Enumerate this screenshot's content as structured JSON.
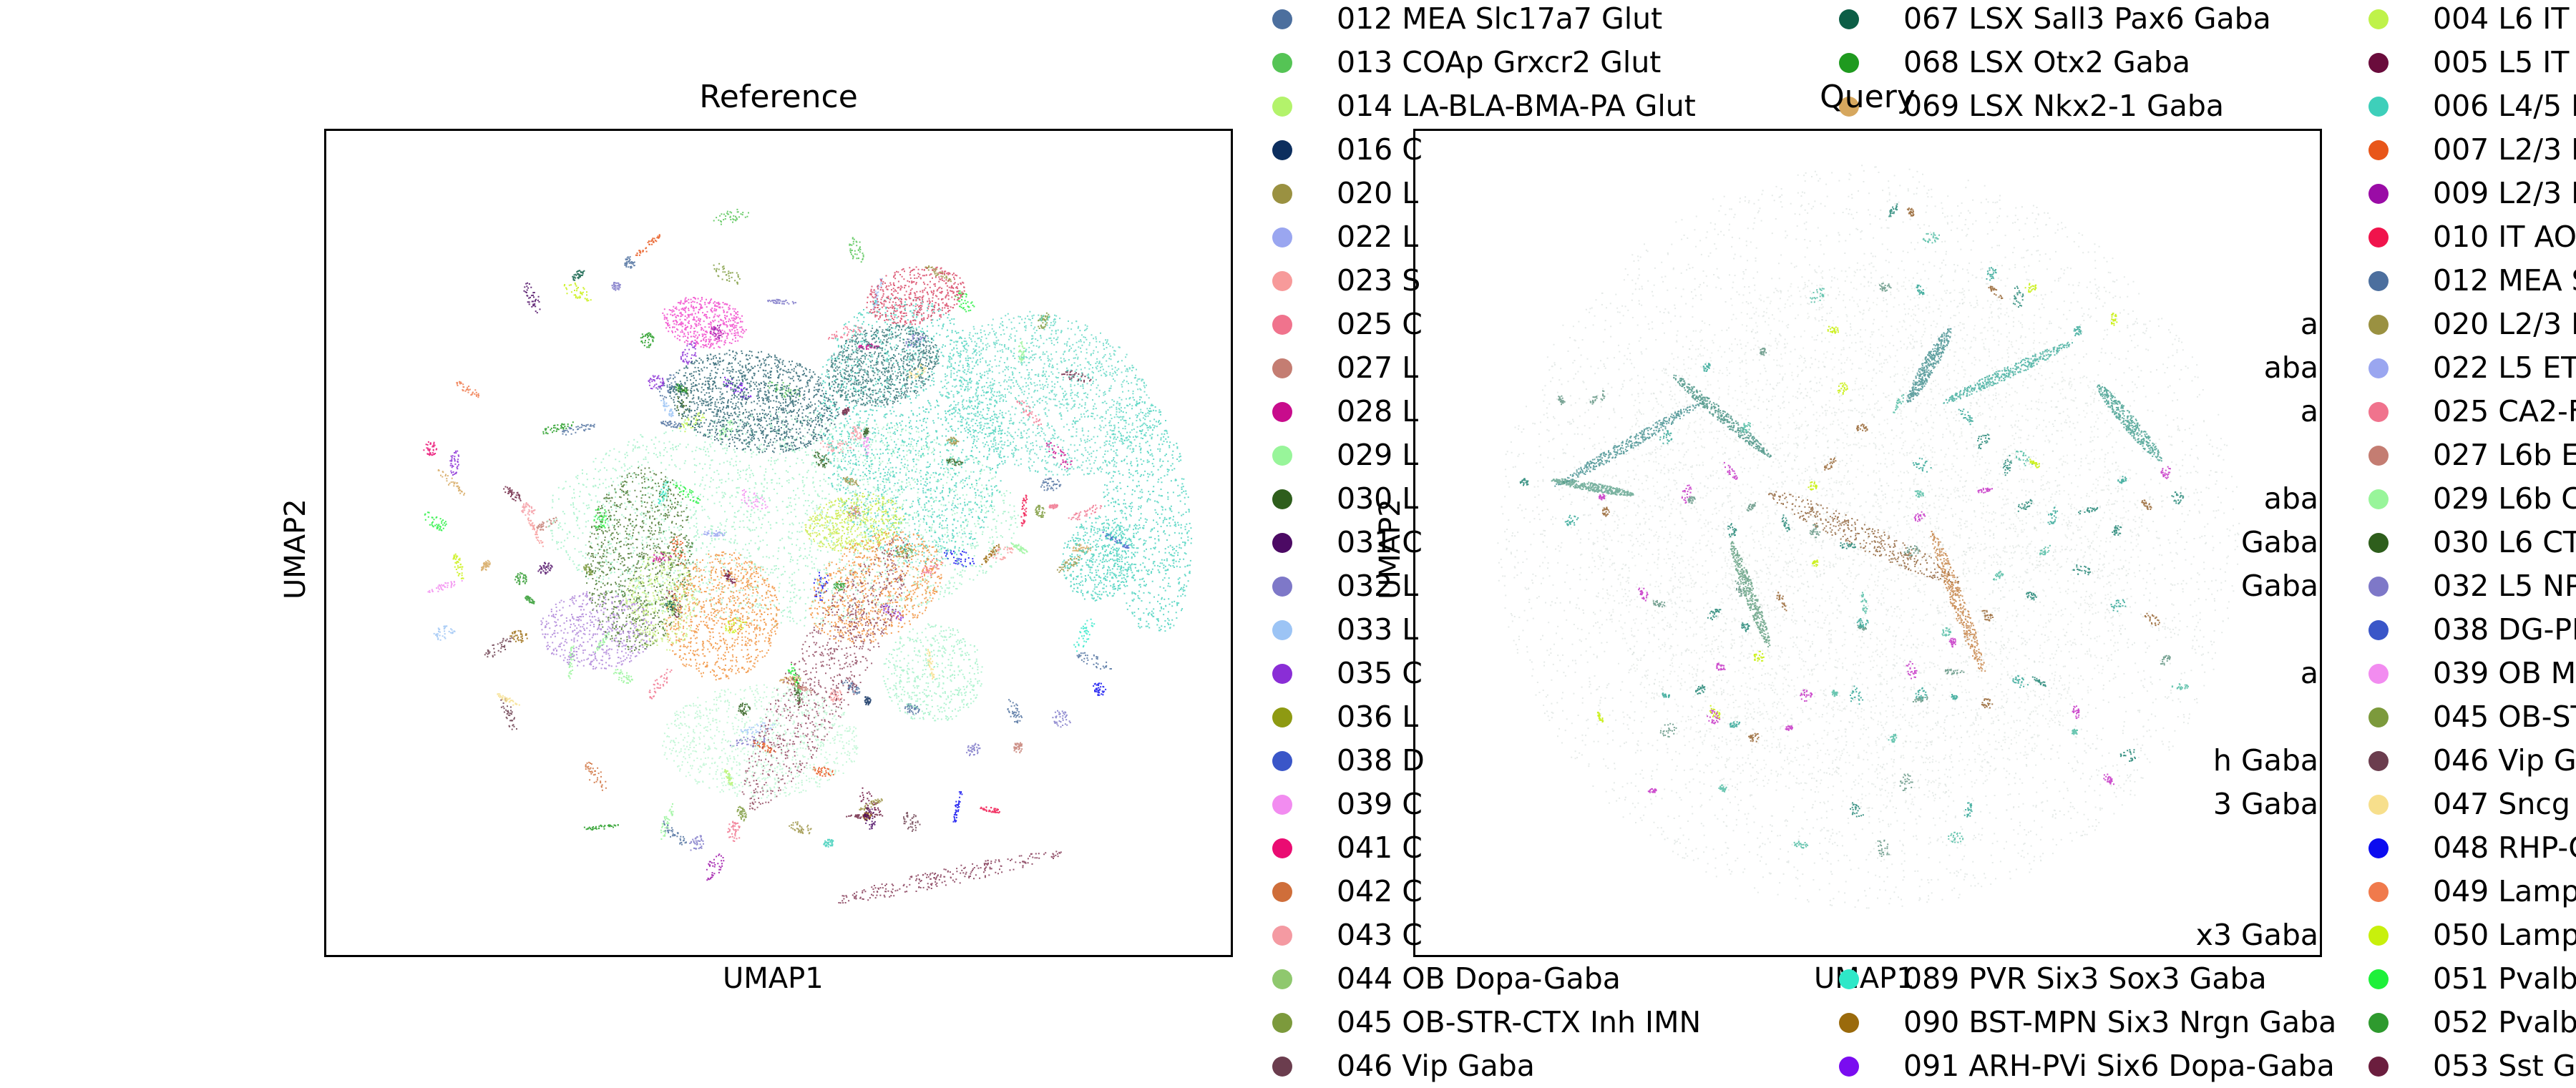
{
  "chart_data": [
    {
      "type": "scatter",
      "title": "Reference",
      "xlabel": "UMAP1",
      "ylabel": "UMAP2",
      "grid": false
    },
    {
      "type": "scatter",
      "title": "Query",
      "xlabel": "UMAP1",
      "ylabel": "UMAP2",
      "grid": false
    }
  ],
  "legend": {
    "columns": [
      [
        {
          "label": "012 MEA Slc17a7 Glut",
          "color": "#4c6f9e"
        },
        {
          "label": "013 COAp Grxcr2 Glut",
          "color": "#55c455"
        },
        {
          "label": "014 LA-BLA-BMA-PA Glut",
          "color": "#b3f36b"
        },
        {
          "label": "016 C",
          "color": "#0c2e5e"
        },
        {
          "label": "020 L",
          "color": "#9a9141"
        },
        {
          "label": "022 L",
          "color": "#9aa6f0"
        },
        {
          "label": "023 S",
          "color": "#f79a9a"
        },
        {
          "label": "025 C",
          "color": "#f0738d"
        },
        {
          "label": "027 L",
          "color": "#c47d72"
        },
        {
          "label": "028 L",
          "color": "#c80c8c"
        },
        {
          "label": "029 L",
          "color": "#98f59a"
        },
        {
          "label": "030 L",
          "color": "#2e5e1c"
        },
        {
          "label": "031 C",
          "color": "#4c0a64"
        },
        {
          "label": "032 L",
          "color": "#7e78c8"
        },
        {
          "label": "033 L",
          "color": "#9cc4f5"
        },
        {
          "label": "035 C",
          "color": "#8a2ed6"
        },
        {
          "label": "036 L",
          "color": "#8e9a12"
        },
        {
          "label": "038 D",
          "color": "#3a56c8"
        },
        {
          "label": "039 C",
          "color": "#f28cf0"
        },
        {
          "label": "041 C",
          "color": "#ea0c72"
        },
        {
          "label": "042 C",
          "color": "#cf6e3a"
        },
        {
          "label": "043 C",
          "color": "#f49aa2"
        },
        {
          "label": "044 OB Dopa-Gaba",
          "color": "#8fc86e"
        },
        {
          "label": "045 OB-STR-CTX Inh IMN",
          "color": "#7c9a3c"
        },
        {
          "label": "046 Vip Gaba",
          "color": "#6b3d4e"
        }
      ],
      [
        {
          "label": "067 LSX Sall3 Pax6 Gaba",
          "color": "#0c5e46"
        },
        {
          "label": "068 LSX Otx2 Gaba",
          "color": "#1f9a1f"
        },
        {
          "label": "069 LSX Nkx2-1 Gaba",
          "color": "#d6a75e"
        },
        {
          "label": "",
          "color": ""
        },
        {
          "label": "",
          "color": ""
        },
        {
          "label": "",
          "color": ""
        },
        {
          "label": "",
          "color": ""
        },
        {
          "label": "",
          "color": ""
        },
        {
          "label": "",
          "color": ""
        },
        {
          "label": "",
          "color": ""
        },
        {
          "label": "",
          "color": ""
        },
        {
          "label": "",
          "color": ""
        },
        {
          "label": "",
          "color": ""
        },
        {
          "label": "",
          "color": ""
        },
        {
          "label": "",
          "color": ""
        },
        {
          "label": "",
          "color": ""
        },
        {
          "label": "",
          "color": ""
        },
        {
          "label": "",
          "color": ""
        },
        {
          "label": "",
          "color": ""
        },
        {
          "label": "",
          "color": ""
        },
        {
          "label": "",
          "color": ""
        },
        {
          "label": "",
          "color": ""
        },
        {
          "label": "089 PVR Six3 Sox3 Gaba",
          "color": "#2ee8c8"
        },
        {
          "label": "090 BST-MPN Six3 Nrgn Gaba",
          "color": "#9a6a0c"
        },
        {
          "label": "091 ARH-PVi Six6 Dopa-Gaba",
          "color": "#7a0cf0"
        }
      ],
      [
        {
          "label": "004 L6 IT",
          "color": "#bff24a"
        },
        {
          "label": "005 L5 IT",
          "color": "#6a0c3c"
        },
        {
          "label": "006 L4/5 I",
          "color": "#3ecfba"
        },
        {
          "label": "007 L2/3 I",
          "color": "#e8561a"
        },
        {
          "label": "009 L2/3 I",
          "color": "#9a0ca6"
        },
        {
          "label": "010 IT AO",
          "color": "#f0144c"
        },
        {
          "label": "012 MEA S",
          "color": "#4c6f9e"
        },
        {
          "label": "020 L2/3 I",
          "color": "#9a9141"
        },
        {
          "label": "022 L5 ET",
          "color": "#9aa6f0"
        },
        {
          "label": "025 CA2-F",
          "color": "#f0738d"
        },
        {
          "label": "027 L6b E",
          "color": "#c47d72"
        },
        {
          "label": "029 L6b C",
          "color": "#98f59a"
        },
        {
          "label": "030 L6 CT",
          "color": "#2e5e1c"
        },
        {
          "label": "032 L5 NP",
          "color": "#7e78c8"
        },
        {
          "label": "038 DG-PI",
          "color": "#3a56c8"
        },
        {
          "label": "039 OB M",
          "color": "#f28cf0"
        },
        {
          "label": "045 OB-ST",
          "color": "#7c9a3c"
        },
        {
          "label": "046 Vip G",
          "color": "#6b3d4e"
        },
        {
          "label": "047 Sncg",
          "color": "#f7df8c"
        },
        {
          "label": "048 RHP-C",
          "color": "#0c0cf0"
        },
        {
          "label": "049 Lamp",
          "color": "#f07a4c"
        },
        {
          "label": "050 Lamp",
          "color": "#c8f00c"
        },
        {
          "label": "051 Pvalb",
          "color": "#1ef03a"
        },
        {
          "label": "052 Pvalb",
          "color": "#2e9a2e"
        },
        {
          "label": "053 Sst G",
          "color": "#6b1e3e"
        }
      ]
    ],
    "partial_visible": [
      {
        "label": "a",
        "color": ""
      },
      {
        "label": "aba",
        "color": ""
      },
      {
        "label": "a",
        "color": ""
      },
      {
        "label": "aba",
        "color": ""
      },
      {
        "label": "Gaba",
        "color": ""
      },
      {
        "label": "Gaba",
        "color": ""
      },
      {
        "label": "a",
        "color": ""
      },
      {
        "label": "h Gaba",
        "color": ""
      },
      {
        "label": "3 Gaba",
        "color": ""
      },
      {
        "label": "x3 Gaba",
        "color": ""
      }
    ]
  }
}
